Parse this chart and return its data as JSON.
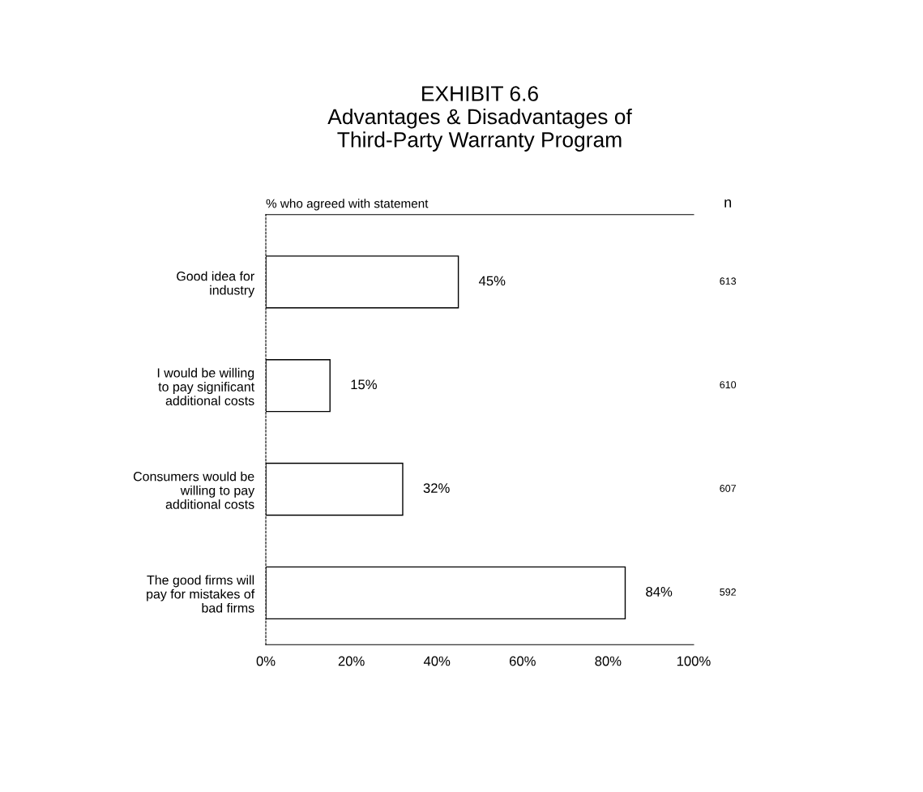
{
  "chart_data": {
    "type": "bar",
    "orientation": "horizontal",
    "title": "EXHIBIT 6.6\nAdvantages & Disadvantages of\nThird-Party Warranty Program",
    "subtitle": "% who agreed with statement",
    "categories": [
      "Good idea for\nindustry",
      "I would be willing\nto pay significant\nadditional costs",
      "Consumers would be\nwilling to pay\nadditional costs",
      "The good firms will\npay for mistakes of\nbad firms"
    ],
    "values": [
      45,
      15,
      32,
      84
    ],
    "value_labels": [
      "45%",
      "15%",
      "32%",
      "84%"
    ],
    "color": "#ffffff",
    "xlim": [
      0,
      100
    ],
    "xticks": [
      {
        "value": 0,
        "label": "0%"
      },
      {
        "value": 20,
        "label": "20%"
      },
      {
        "value": 40,
        "label": "40%"
      },
      {
        "value": 60,
        "label": "60%"
      },
      {
        "value": 80,
        "label": "80%"
      },
      {
        "value": 100,
        "label": "100%"
      }
    ],
    "grid": false,
    "legend": false,
    "annotations": [
      "n",
      "613",
      "610",
      "607",
      "592"
    ]
  }
}
